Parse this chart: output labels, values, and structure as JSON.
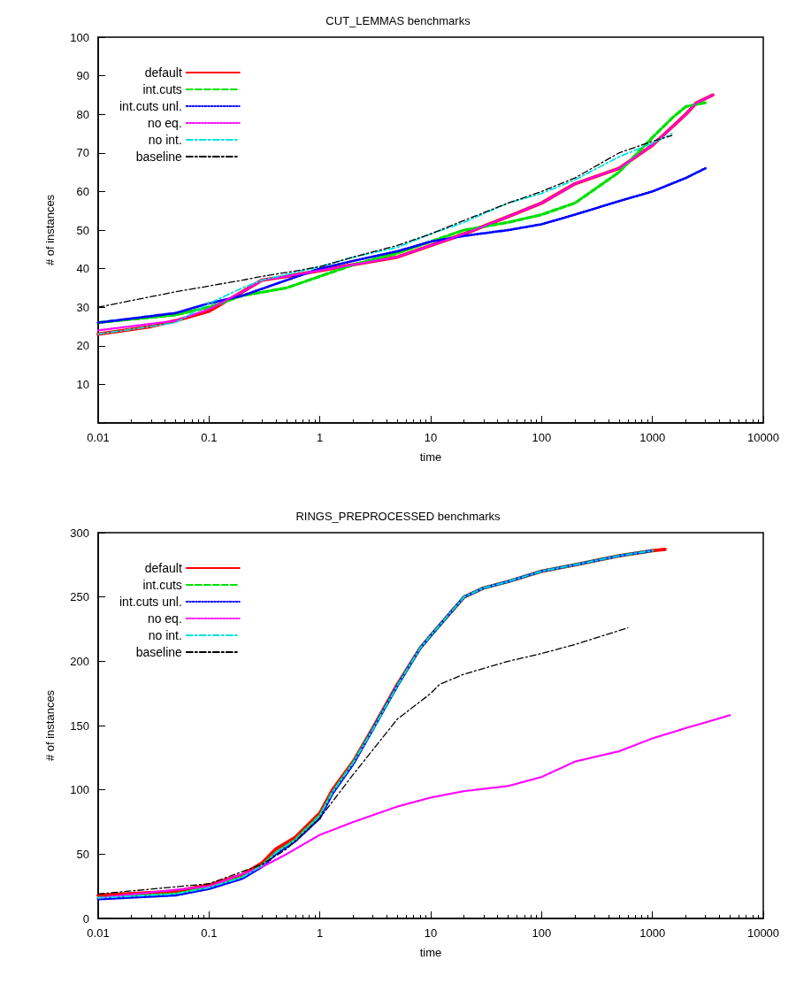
{
  "chart_data": [
    {
      "type": "line",
      "title": "CUT_LEMMAS benchmarks",
      "xlabel": "time",
      "ylabel": "# of instances",
      "log": "x",
      "grid": false,
      "legend": "top left",
      "marker": "none",
      "xlim": [
        0.01,
        10000
      ],
      "xticks": [
        0.01,
        0.1,
        1,
        10,
        100,
        1000,
        10000
      ],
      "ylim": [
        0,
        100
      ],
      "yticks": [
        {
          "value": 0,
          "label": null
        },
        10,
        20,
        30,
        40,
        50,
        60,
        70,
        80,
        90,
        100
      ],
      "series": [
        {
          "name": "default",
          "color": "#ff0000",
          "line_style": "solid",
          "x": [
            0.01,
            0.03,
            0.05,
            0.1,
            0.2,
            0.3,
            0.5,
            1,
            2,
            5,
            10,
            20,
            50,
            100,
            200,
            500,
            1000,
            2000,
            2500,
            3500
          ],
          "values": [
            23,
            25,
            26.5,
            29,
            34,
            37,
            38,
            39.5,
            41,
            43,
            46,
            49,
            53.5,
            57,
            62,
            66,
            72,
            80,
            83,
            85
          ]
        },
        {
          "name": "int.cuts",
          "color": "#00e000",
          "line_style": "dashed",
          "x": [
            0.01,
            0.05,
            0.1,
            0.2,
            0.5,
            1,
            2,
            5,
            10,
            20,
            50,
            100,
            200,
            500,
            1000,
            1500,
            2000,
            3000
          ],
          "values": [
            26,
            28,
            30,
            33,
            35,
            38,
            41,
            44,
            47,
            50,
            52,
            54,
            57,
            65,
            74,
            79,
            82,
            83
          ]
        },
        {
          "name": "int.cuts unl.",
          "color": "#0000ff",
          "line_style": "dotted",
          "x": [
            0.01,
            0.05,
            0.1,
            0.2,
            0.5,
            1,
            2,
            5,
            10,
            20,
            50,
            100,
            200,
            500,
            1000,
            2000,
            3000
          ],
          "values": [
            26,
            28.5,
            31,
            33,
            37,
            40,
            42,
            44.5,
            47,
            48.5,
            50,
            51.5,
            54,
            57.5,
            60,
            63.5,
            66
          ]
        },
        {
          "name": "no eq.",
          "color": "#ff00ff",
          "line_style": "dotted",
          "x": [
            0.01,
            0.05,
            0.1,
            0.2,
            0.3,
            0.5,
            1,
            2,
            5,
            10,
            20,
            50,
            100,
            200,
            500,
            1000,
            2000,
            2500,
            3500
          ],
          "values": [
            24,
            26.5,
            29.5,
            34,
            37,
            38,
            39.5,
            41,
            43,
            46,
            49,
            53.5,
            57,
            62,
            66,
            72,
            80,
            83,
            85
          ]
        },
        {
          "name": "no int.",
          "color": "#00e0e0",
          "line_style": "dashdot",
          "x": [
            0.01,
            0.05,
            0.1,
            0.2,
            0.3,
            0.5,
            1,
            2,
            5,
            10,
            20,
            50,
            100,
            200,
            500,
            1000,
            1500
          ],
          "values": [
            23,
            26,
            31,
            35,
            37,
            38.5,
            40.5,
            43,
            45.5,
            49,
            52,
            57,
            59.5,
            63,
            69,
            72.5,
            75
          ]
        },
        {
          "name": "baseline",
          "color": "#000000",
          "line_style": "dashdot",
          "x": [
            0.01,
            0.05,
            0.1,
            0.2,
            0.3,
            0.5,
            1,
            2,
            5,
            10,
            20,
            50,
            100,
            200,
            500,
            1000,
            1500
          ],
          "values": [
            30,
            34,
            35.5,
            37,
            38,
            39,
            40.5,
            43,
            46,
            49,
            52.5,
            57,
            60,
            63.5,
            70,
            73,
            74.5
          ]
        }
      ]
    },
    {
      "type": "line",
      "title": "RINGS_PREPROCESSED benchmarks",
      "xlabel": "time",
      "ylabel": "# of instances",
      "log": "x",
      "grid": false,
      "legend": "top left",
      "marker": "none",
      "xlim": [
        0.01,
        10000
      ],
      "xticks": [
        0.01,
        0.1,
        1,
        10,
        100,
        1000,
        10000
      ],
      "ylim": [
        0,
        300
      ],
      "yticks": [
        0,
        50,
        100,
        150,
        200,
        250,
        300
      ],
      "series": [
        {
          "name": "default",
          "color": "#ff0000",
          "line_style": "solid",
          "x": [
            0.01,
            0.05,
            0.1,
            0.2,
            0.3,
            0.4,
            0.6,
            1,
            1.3,
            2,
            3,
            5,
            8,
            10,
            20,
            30,
            50,
            100,
            200,
            500,
            1000,
            1300
          ],
          "values": [
            18,
            21,
            26,
            34,
            43,
            54,
            63,
            82,
            100,
            122,
            148,
            182,
            210,
            220,
            250,
            257,
            262,
            270,
            275,
            282,
            286,
            287
          ]
        },
        {
          "name": "int.cuts",
          "color": "#00e000",
          "line_style": "dashed",
          "x": [
            0.01,
            0.05,
            0.1,
            0.2,
            0.3,
            0.4,
            0.6,
            1,
            1.3,
            2,
            3,
            5,
            8,
            10,
            20,
            30,
            50,
            100,
            200,
            500,
            1000
          ],
          "values": [
            16,
            19,
            24,
            32,
            41,
            51,
            61,
            80,
            98,
            121,
            147,
            181,
            210,
            220,
            250,
            257,
            262,
            270,
            275,
            282,
            286
          ]
        },
        {
          "name": "int.cuts unl.",
          "color": "#0000ff",
          "line_style": "dotted",
          "x": [
            0.01,
            0.05,
            0.1,
            0.2,
            0.3,
            0.4,
            0.6,
            1,
            1.3,
            2,
            3,
            5,
            8,
            10,
            20,
            30,
            50,
            100,
            200,
            500,
            1000
          ],
          "values": [
            15,
            18,
            23,
            31,
            40,
            50,
            60,
            78,
            97,
            120,
            147,
            181,
            210,
            220,
            250,
            257,
            262,
            270,
            275,
            282,
            286
          ]
        },
        {
          "name": "no eq.",
          "color": "#ff00ff",
          "line_style": "dotted",
          "x": [
            0.01,
            0.1,
            0.3,
            0.5,
            1,
            2,
            5,
            10,
            20,
            50,
            100,
            200,
            500,
            1000,
            2000,
            5000
          ],
          "values": [
            16,
            25,
            40,
            50,
            65,
            75,
            87,
            94,
            99,
            103,
            110,
            122,
            130,
            140,
            148,
            158
          ]
        },
        {
          "name": "no int.",
          "color": "#00e0e0",
          "line_style": "dashdot",
          "x": [
            0.01,
            0.05,
            0.1,
            0.2,
            0.3,
            0.4,
            0.6,
            1,
            1.3,
            2,
            3,
            5,
            8,
            10,
            20,
            30,
            50,
            100,
            200,
            500,
            1000
          ],
          "values": [
            16,
            19,
            24,
            32,
            41,
            51,
            61,
            80,
            98,
            121,
            147,
            181,
            210,
            220,
            250,
            257,
            262,
            270,
            275,
            282,
            286
          ]
        },
        {
          "name": "baseline",
          "color": "#000000",
          "line_style": "dashdot",
          "x": [
            0.01,
            0.1,
            0.3,
            0.5,
            1,
            2,
            5,
            10,
            12,
            20,
            50,
            100,
            200,
            600
          ],
          "values": [
            19,
            27,
            42,
            54,
            78,
            112,
            155,
            175,
            182,
            190,
            200,
            206,
            213,
            226
          ]
        }
      ]
    }
  ]
}
